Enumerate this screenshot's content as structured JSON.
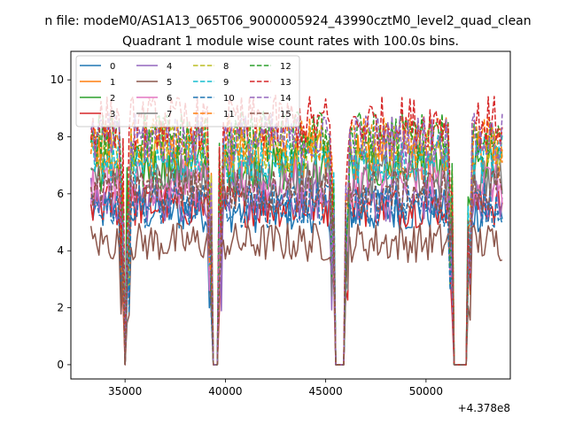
{
  "chart_data": {
    "type": "line",
    "suptitle": "n file: modeM0/AS1A13_065T06_9000005924_43990cztM0_level2_quad_clean",
    "title": "Quadrant 1 module wise count rates with 100.0s bins.",
    "offset_label": "+4.378e8",
    "xlabel": "",
    "ylabel": "",
    "xlim": [
      32300,
      54200
    ],
    "ylim": [
      -0.5,
      11.0
    ],
    "x_ticks": [
      35000,
      40000,
      45000,
      50000
    ],
    "y_ticks": [
      0,
      2,
      4,
      6,
      8,
      10
    ],
    "grid": false,
    "legend_placement": "top-left",
    "legend_columns": 4,
    "x_range": [
      33300,
      53800
    ],
    "x_step": 100,
    "gaps": [
      [
        34950,
        35050
      ],
      [
        39350,
        39650
      ],
      [
        45450,
        45950
      ],
      [
        51350,
        52050
      ]
    ],
    "series": [
      {
        "name": "0",
        "color": "#1f77b4",
        "dash": "solid",
        "level": 5.4
      },
      {
        "name": "1",
        "color": "#ff7f0e",
        "dash": "solid",
        "level": 7.3
      },
      {
        "name": "2",
        "color": "#2ca02c",
        "dash": "solid",
        "level": 6.9
      },
      {
        "name": "3",
        "color": "#d62728",
        "dash": "solid",
        "level": 5.6
      },
      {
        "name": "4",
        "color": "#9467bd",
        "dash": "solid",
        "level": 5.8
      },
      {
        "name": "5",
        "color": "#8c564b",
        "dash": "solid",
        "level": 4.3
      },
      {
        "name": "6",
        "color": "#e377c2",
        "dash": "solid",
        "level": 6.4
      },
      {
        "name": "7",
        "color": "#7f7f7f",
        "dash": "solid",
        "level": 6.6
      },
      {
        "name": "8",
        "color": "#bcbd22",
        "dash": "dashed",
        "level": 7.6
      },
      {
        "name": "9",
        "color": "#17becf",
        "dash": "dashed",
        "level": 7.2
      },
      {
        "name": "10",
        "color": "#1f77b4",
        "dash": "dashed",
        "level": 5.6
      },
      {
        "name": "11",
        "color": "#ff7f0e",
        "dash": "dashed",
        "level": 7.8
      },
      {
        "name": "12",
        "color": "#2ca02c",
        "dash": "dashed",
        "level": 8.0
      },
      {
        "name": "13",
        "color": "#d62728",
        "dash": "dashed",
        "level": 8.5
      },
      {
        "name": "14",
        "color": "#9467bd",
        "dash": "dashed",
        "level": 7.9
      },
      {
        "name": "15",
        "color": "#8c564b",
        "dash": "dashed",
        "level": 6.1
      }
    ]
  }
}
